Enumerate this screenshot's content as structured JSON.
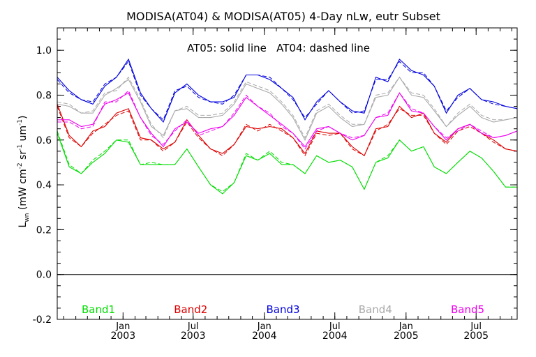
{
  "chart_data": {
    "type": "line",
    "title": "MODISA(AT04) & MODISA(AT05) 4-Day nLw, eutr Subset",
    "annotation": "AT05: solid line   AT04: dashed line",
    "ylabel": "L_wn (mW cm^-2 sr^-1 um^-1)",
    "ylim": [
      -0.2,
      1.1
    ],
    "y_ticks": [
      "-0.2",
      "0.0",
      "0.2",
      "0.4",
      "0.6",
      "0.8",
      "1.0"
    ],
    "x_range": [
      "2002-07-15",
      "2005-10-15"
    ],
    "x_ticks": [
      {
        "date": "2003-01-01",
        "month": "Jan",
        "year": "2003"
      },
      {
        "date": "2003-07-01",
        "month": "Jul",
        "year": "2003"
      },
      {
        "date": "2004-01-01",
        "month": "Jan",
        "year": "2004"
      },
      {
        "date": "2004-07-01",
        "month": "Jul",
        "year": "2004"
      },
      {
        "date": "2005-01-01",
        "month": "Jan",
        "year": "2005"
      },
      {
        "date": "2005-07-01",
        "month": "Jul",
        "year": "2005"
      }
    ],
    "zero_line": 0.0,
    "x": [
      "2002-07-15",
      "2002-08-15",
      "2002-09-15",
      "2002-10-15",
      "2002-11-15",
      "2002-12-15",
      "2003-01-15",
      "2003-02-15",
      "2003-03-15",
      "2003-04-15",
      "2003-05-15",
      "2003-06-15",
      "2003-07-15",
      "2003-08-15",
      "2003-09-15",
      "2003-10-15",
      "2003-11-15",
      "2003-12-15",
      "2004-01-15",
      "2004-02-15",
      "2004-03-15",
      "2004-04-15",
      "2004-05-15",
      "2004-06-15",
      "2004-07-15",
      "2004-08-15",
      "2004-09-15",
      "2004-10-15",
      "2004-11-15",
      "2004-12-15",
      "2005-01-15",
      "2005-02-15",
      "2005-03-15",
      "2005-04-15",
      "2005-05-15",
      "2005-06-15",
      "2005-07-15",
      "2005-08-15",
      "2005-09-15",
      "2005-10-15"
    ],
    "series": [
      {
        "name": "Band1",
        "color": "#00dd00",
        "at05": [
          0.63,
          0.48,
          0.45,
          0.5,
          0.54,
          0.6,
          0.59,
          0.49,
          0.49,
          0.49,
          0.49,
          0.56,
          0.48,
          0.4,
          0.36,
          0.41,
          0.53,
          0.51,
          0.54,
          0.49,
          0.49,
          0.45,
          0.53,
          0.5,
          0.51,
          0.48,
          0.38,
          0.5,
          0.52,
          0.6,
          0.55,
          0.57,
          0.48,
          0.45,
          0.5,
          0.55,
          0.52,
          0.46,
          0.39,
          0.39
        ],
        "at04": [
          0.64,
          0.49,
          0.45,
          0.51,
          0.55,
          0.6,
          0.6,
          0.49,
          0.5,
          0.49,
          0.49,
          0.56,
          0.48,
          0.4,
          0.37,
          0.41,
          0.54,
          0.51,
          0.55,
          0.5,
          0.49,
          0.45,
          0.53,
          0.5,
          0.51,
          0.48,
          0.38,
          0.5,
          0.53,
          0.6,
          0.55,
          0.57,
          0.48,
          0.45,
          0.5,
          0.55,
          0.52,
          0.46,
          0.39,
          0.39
        ]
      },
      {
        "name": "Band2",
        "color": "#dd0000",
        "at05": [
          0.76,
          0.62,
          0.57,
          0.64,
          0.66,
          0.72,
          0.74,
          0.61,
          0.6,
          0.56,
          0.59,
          0.69,
          0.62,
          0.56,
          0.54,
          0.58,
          0.66,
          0.65,
          0.66,
          0.65,
          0.61,
          0.54,
          0.64,
          0.63,
          0.63,
          0.57,
          0.53,
          0.65,
          0.66,
          0.75,
          0.7,
          0.72,
          0.63,
          0.59,
          0.65,
          0.67,
          0.63,
          0.6,
          0.56,
          0.55
        ],
        "at04": [
          0.75,
          0.61,
          0.57,
          0.63,
          0.67,
          0.71,
          0.73,
          0.6,
          0.6,
          0.55,
          0.59,
          0.68,
          0.61,
          0.56,
          0.53,
          0.58,
          0.67,
          0.64,
          0.67,
          0.64,
          0.61,
          0.53,
          0.63,
          0.62,
          0.63,
          0.56,
          0.53,
          0.64,
          0.67,
          0.74,
          0.71,
          0.71,
          0.63,
          0.58,
          0.64,
          0.66,
          0.63,
          0.59,
          0.56,
          0.55
        ]
      },
      {
        "name": "Band3",
        "color": "#0000dd",
        "at05": [
          0.88,
          0.82,
          0.78,
          0.76,
          0.84,
          0.88,
          0.96,
          0.81,
          0.74,
          0.68,
          0.81,
          0.85,
          0.8,
          0.77,
          0.77,
          0.79,
          0.89,
          0.89,
          0.87,
          0.83,
          0.79,
          0.69,
          0.77,
          0.82,
          0.77,
          0.73,
          0.72,
          0.88,
          0.86,
          0.96,
          0.91,
          0.89,
          0.84,
          0.72,
          0.8,
          0.83,
          0.78,
          0.77,
          0.75,
          0.74
        ],
        "at04": [
          0.87,
          0.81,
          0.78,
          0.77,
          0.85,
          0.88,
          0.95,
          0.8,
          0.74,
          0.69,
          0.82,
          0.84,
          0.79,
          0.77,
          0.76,
          0.8,
          0.89,
          0.89,
          0.88,
          0.83,
          0.78,
          0.7,
          0.76,
          0.82,
          0.77,
          0.72,
          0.73,
          0.87,
          0.87,
          0.95,
          0.9,
          0.9,
          0.84,
          0.73,
          0.79,
          0.83,
          0.78,
          0.76,
          0.75,
          0.74
        ]
      },
      {
        "name": "Band4",
        "color": "#aaaaaa",
        "at05": [
          0.76,
          0.75,
          0.72,
          0.72,
          0.8,
          0.83,
          0.87,
          0.77,
          0.66,
          0.62,
          0.73,
          0.74,
          0.7,
          0.7,
          0.71,
          0.76,
          0.85,
          0.83,
          0.81,
          0.76,
          0.7,
          0.6,
          0.72,
          0.75,
          0.7,
          0.66,
          0.67,
          0.79,
          0.8,
          0.88,
          0.8,
          0.79,
          0.73,
          0.66,
          0.71,
          0.75,
          0.7,
          0.68,
          0.69,
          0.7
        ],
        "at04": [
          0.77,
          0.76,
          0.72,
          0.73,
          0.81,
          0.82,
          0.88,
          0.78,
          0.67,
          0.61,
          0.73,
          0.75,
          0.71,
          0.71,
          0.72,
          0.77,
          0.86,
          0.84,
          0.82,
          0.77,
          0.71,
          0.61,
          0.73,
          0.76,
          0.71,
          0.67,
          0.67,
          0.8,
          0.81,
          0.88,
          0.81,
          0.8,
          0.74,
          0.66,
          0.72,
          0.76,
          0.71,
          0.69,
          0.69,
          0.7
        ]
      },
      {
        "name": "Band5",
        "color": "#ee00ee",
        "at05": [
          0.69,
          0.69,
          0.66,
          0.67,
          0.76,
          0.78,
          0.81,
          0.7,
          0.63,
          0.57,
          0.65,
          0.68,
          0.63,
          0.65,
          0.66,
          0.71,
          0.79,
          0.75,
          0.71,
          0.67,
          0.63,
          0.57,
          0.65,
          0.66,
          0.63,
          0.6,
          0.62,
          0.7,
          0.71,
          0.81,
          0.73,
          0.72,
          0.66,
          0.6,
          0.65,
          0.67,
          0.63,
          0.61,
          0.62,
          0.64
        ],
        "at04": [
          0.68,
          0.68,
          0.65,
          0.66,
          0.77,
          0.77,
          0.82,
          0.7,
          0.62,
          0.58,
          0.64,
          0.69,
          0.62,
          0.64,
          0.66,
          0.72,
          0.8,
          0.75,
          0.72,
          0.66,
          0.63,
          0.56,
          0.64,
          0.66,
          0.63,
          0.61,
          0.62,
          0.7,
          0.72,
          0.81,
          0.74,
          0.72,
          0.66,
          0.61,
          0.64,
          0.67,
          0.64,
          0.61,
          0.62,
          0.64
        ]
      }
    ]
  }
}
